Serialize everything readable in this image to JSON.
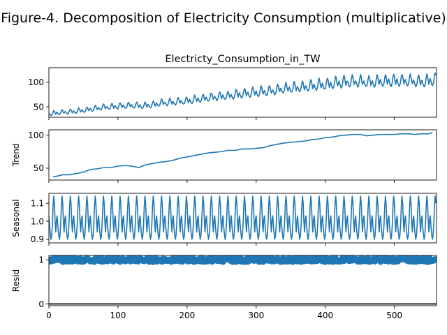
{
  "figure": {
    "suptitle": "Figure-4. Decomposition of Electricity Consumption (multiplicative)",
    "line_color": "#1f77b4"
  },
  "chart_data": [
    {
      "type": "line",
      "panel": "observed",
      "title": "Electricty_Consumption_in_TW",
      "ylabel": "",
      "xlim": [
        0,
        561
      ],
      "ylim": [
        29,
        129
      ],
      "yticks": [
        50,
        100
      ],
      "xticks": [
        0,
        100,
        200,
        300,
        400,
        500
      ],
      "show_x_ticklabels": false,
      "series_model": {
        "n": 561,
        "trend_knots": [
          [
            0,
            36
          ],
          [
            20,
            39
          ],
          [
            40,
            41
          ],
          [
            60,
            45
          ],
          [
            80,
            49
          ],
          [
            100,
            51
          ],
          [
            120,
            53
          ],
          [
            140,
            52
          ],
          [
            160,
            57
          ],
          [
            180,
            59
          ],
          [
            200,
            62
          ],
          [
            220,
            66
          ],
          [
            240,
            70
          ],
          [
            260,
            72
          ],
          [
            280,
            76
          ],
          [
            300,
            79
          ],
          [
            320,
            82
          ],
          [
            340,
            86
          ],
          [
            360,
            89
          ],
          [
            380,
            92
          ],
          [
            400,
            95
          ],
          [
            420,
            98
          ],
          [
            440,
            101
          ],
          [
            460,
            100
          ],
          [
            480,
            101
          ],
          [
            500,
            102
          ],
          [
            520,
            102
          ],
          [
            540,
            101
          ],
          [
            560,
            104
          ]
        ],
        "seasonal_profile": [
          1.03,
          0.97,
          0.93,
          0.9,
          0.92,
          0.98,
          1.08,
          1.14,
          1.1,
          1.0,
          0.94,
          1.01
        ],
        "period": 12
      }
    },
    {
      "type": "line",
      "panel": "trend",
      "title": "",
      "ylabel": "Trend",
      "xlim": [
        0,
        561
      ],
      "ylim": [
        32,
        108
      ],
      "yticks": [
        50,
        100
      ],
      "xticks": [
        0,
        100,
        200,
        300,
        400,
        500
      ],
      "show_x_ticklabels": false,
      "x": [
        6,
        12,
        20,
        30,
        40,
        50,
        60,
        70,
        80,
        90,
        100,
        110,
        120,
        130,
        140,
        150,
        160,
        170,
        180,
        190,
        200,
        210,
        220,
        230,
        240,
        250,
        260,
        270,
        280,
        290,
        300,
        310,
        320,
        330,
        340,
        350,
        360,
        370,
        380,
        390,
        400,
        410,
        420,
        430,
        440,
        450,
        460,
        470,
        480,
        490,
        500,
        510,
        520,
        530,
        540,
        550,
        555
      ],
      "values": [
        37,
        38,
        40,
        40,
        42,
        44,
        48,
        49,
        51,
        51,
        53,
        54,
        53,
        51,
        55,
        57,
        59,
        60,
        62,
        65,
        67,
        69,
        71,
        73,
        74,
        75,
        77,
        77,
        79,
        79,
        80,
        81,
        84,
        86,
        88,
        89,
        90,
        91,
        93,
        94,
        96,
        97,
        99,
        100,
        101,
        101,
        99,
        100,
        101,
        101,
        101,
        102,
        102,
        101,
        102,
        102,
        104
      ]
    },
    {
      "type": "line",
      "panel": "seasonal",
      "title": "",
      "ylabel": "Seasonal",
      "xlim": [
        0,
        561
      ],
      "ylim": [
        0.88,
        1.155
      ],
      "yticks": [
        0.9,
        1.0,
        1.1
      ],
      "xticks": [
        0,
        100,
        200,
        300,
        400,
        500
      ],
      "show_x_ticklabels": false,
      "period": 12,
      "seasonal_profile": [
        1.03,
        0.97,
        0.93,
        0.9,
        0.92,
        0.98,
        1.08,
        1.14,
        1.1,
        1.0,
        0.94,
        1.01
      ]
    },
    {
      "type": "scatter",
      "panel": "resid",
      "title": "",
      "ylabel": "Resid",
      "xlim": [
        0,
        561
      ],
      "ylim": [
        -0.04,
        1.1
      ],
      "yticks": [
        0,
        1
      ],
      "xticks": [
        0,
        100,
        200,
        300,
        400,
        500
      ],
      "show_x_ticklabels": true,
      "baseline": 0,
      "n": 561,
      "center": 1.0,
      "spread": 0.05
    }
  ]
}
